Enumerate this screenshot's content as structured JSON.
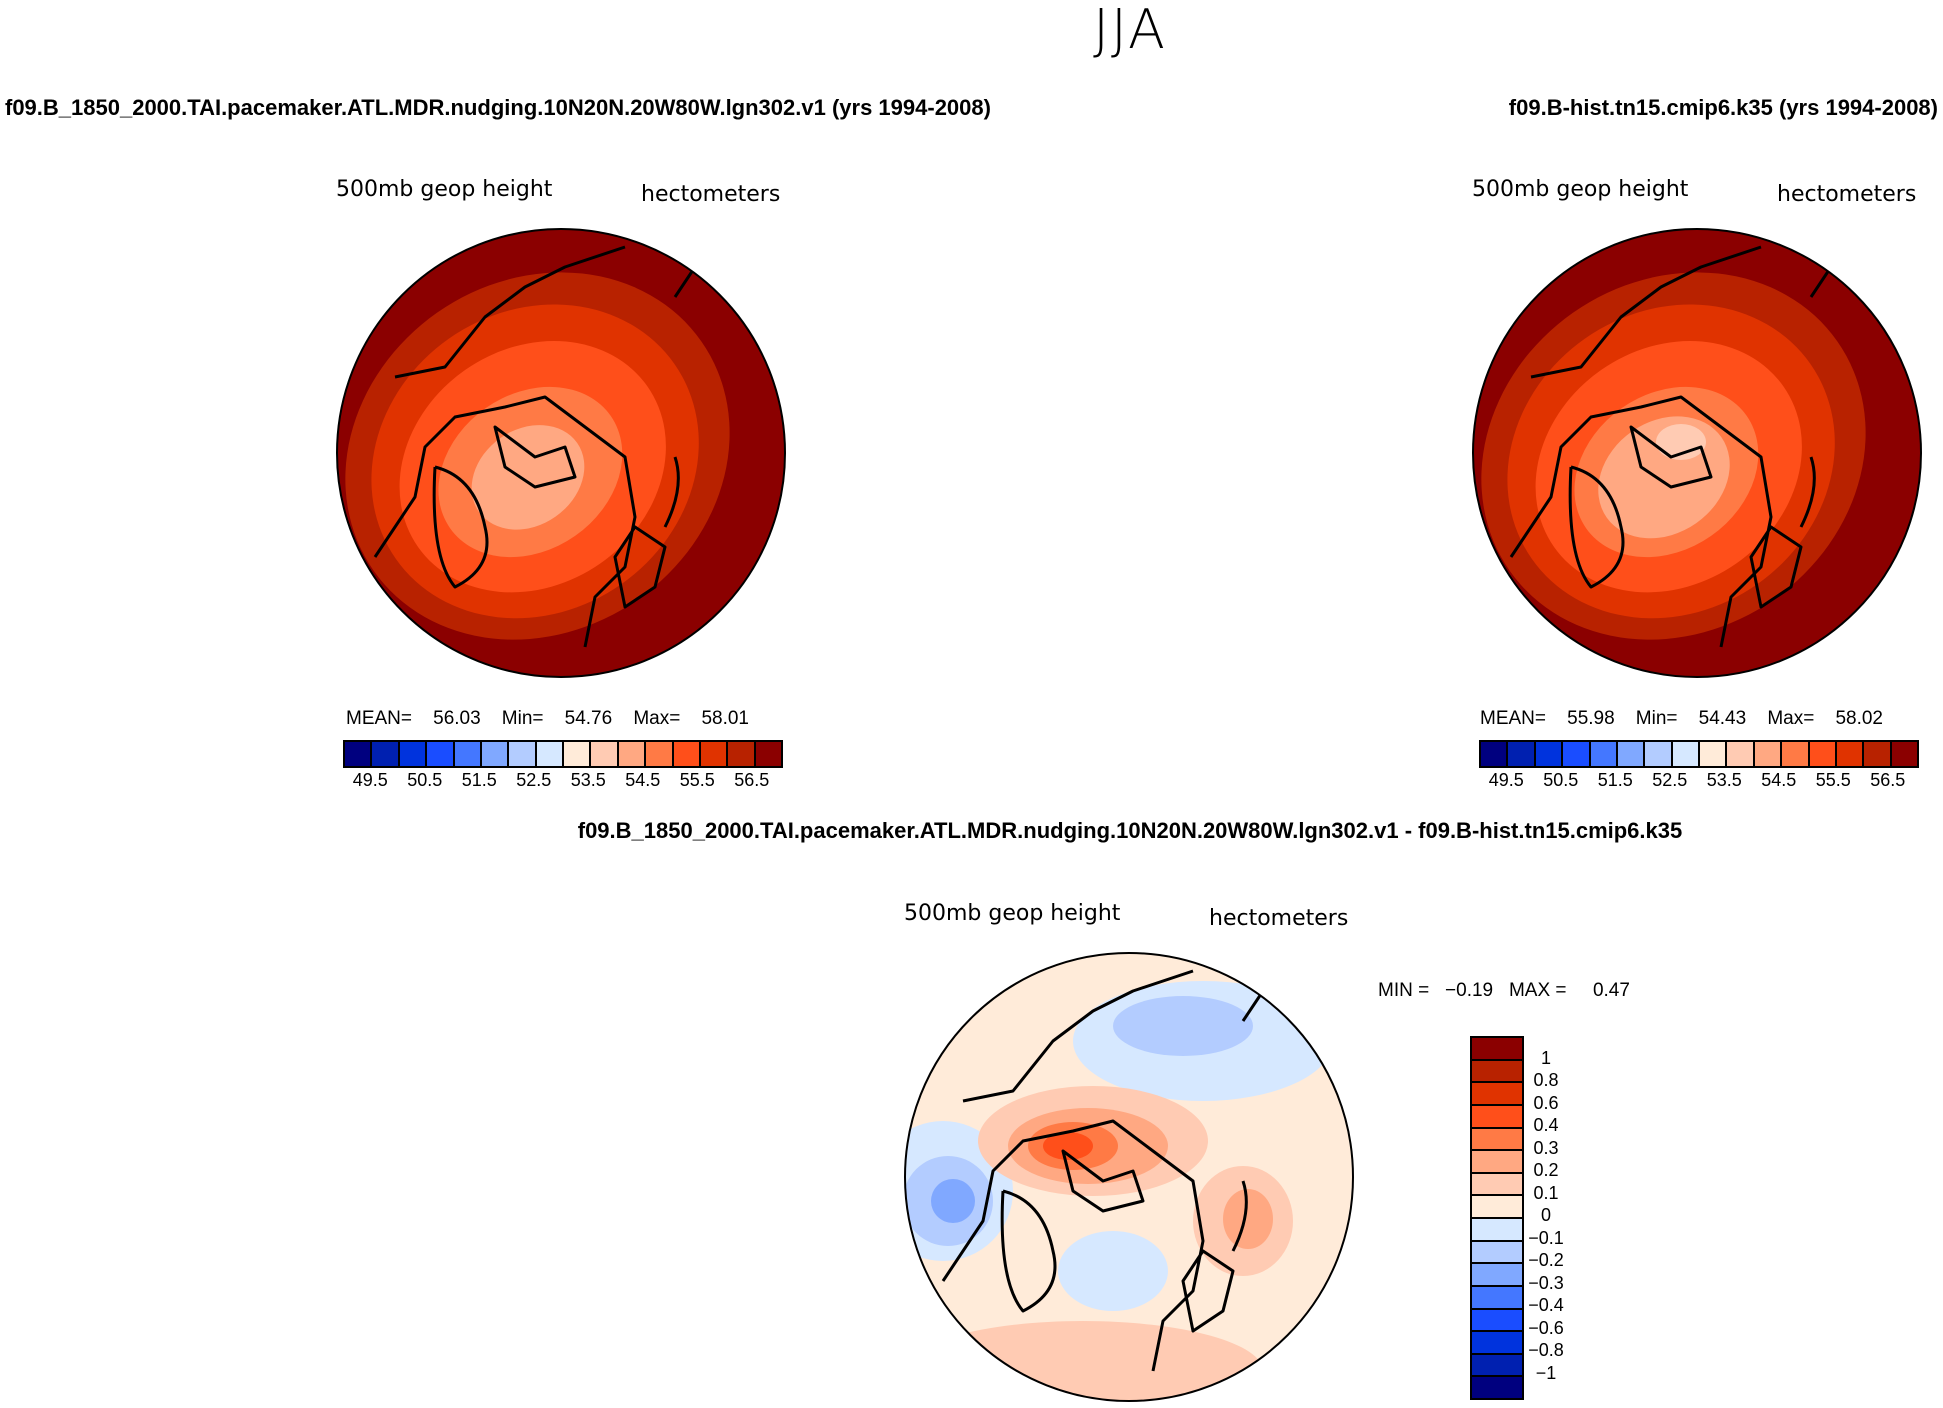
{
  "title": "JJA",
  "left_subtitle": "f09.B_1850_2000.TAI.pacemaker.ATL.MDR.nudging.10N20N.20W80W.lgn302.v1 (yrs 1994-2008)",
  "right_subtitle": "f09.B-hist.tn15.cmip6.k35 (yrs 1994-2008)",
  "diff_subtitle": "f09.B_1850_2000.TAI.pacemaker.ATL.MDR.nudging.10N20N.20W80W.lgn302.v1 - f09.B-hist.tn15.cmip6.k35",
  "chart_data": [
    {
      "type": "heatmap",
      "projection": "polar-stereographic",
      "variable": "500mb geop height",
      "units": "hectometers",
      "stats": {
        "mean_label": "MEAN=",
        "mean": "56.03",
        "min_label": "Min=",
        "min": "54.76",
        "max_label": "Max=",
        "max": "58.01"
      },
      "levels": [
        "49.5",
        "50.5",
        "51.5",
        "52.5",
        "53.5",
        "54.5",
        "55.5",
        "56.5"
      ]
    },
    {
      "type": "heatmap",
      "projection": "polar-stereographic",
      "variable": "500mb geop height",
      "units": "hectometers",
      "stats": {
        "mean_label": "MEAN=",
        "mean": "55.98",
        "min_label": "Min=",
        "min": "54.43",
        "max_label": "Max=",
        "max": "58.02"
      },
      "levels": [
        "49.5",
        "50.5",
        "51.5",
        "52.5",
        "53.5",
        "54.5",
        "55.5",
        "56.5"
      ]
    },
    {
      "type": "heatmap",
      "projection": "polar-stereographic",
      "variable": "500mb geop height",
      "units": "hectometers",
      "stats": {
        "min_label": "MIN =",
        "min": "−0.19",
        "max_label": "MAX =",
        "max": "0.47"
      },
      "levels": [
        "1",
        "0.8",
        "0.6",
        "0.4",
        "0.3",
        "0.2",
        "0.1",
        "0",
        "−0.1",
        "−0.2",
        "−0.3",
        "−0.4",
        "−0.6",
        "−0.8",
        "−1"
      ]
    }
  ],
  "colors_abs": [
    "#00007f",
    "#0020b0",
    "#0033dd",
    "#1a4dff",
    "#4477ff",
    "#80a8ff",
    "#b3ccff",
    "#d6e8ff",
    "#ffebd9",
    "#ffcbb3",
    "#ffa882",
    "#ff7a45",
    "#ff4f1a",
    "#e03300",
    "#b82200",
    "#8b0000"
  ],
  "colors_diff": [
    "#8b0000",
    "#b82200",
    "#e03300",
    "#ff4f1a",
    "#ff7a45",
    "#ffa882",
    "#ffcbb3",
    "#ffebd9",
    "#d6e8ff",
    "#b3ccff",
    "#80a8ff",
    "#4477ff",
    "#1a4dff",
    "#0033dd",
    "#0020b0",
    "#00007f"
  ]
}
